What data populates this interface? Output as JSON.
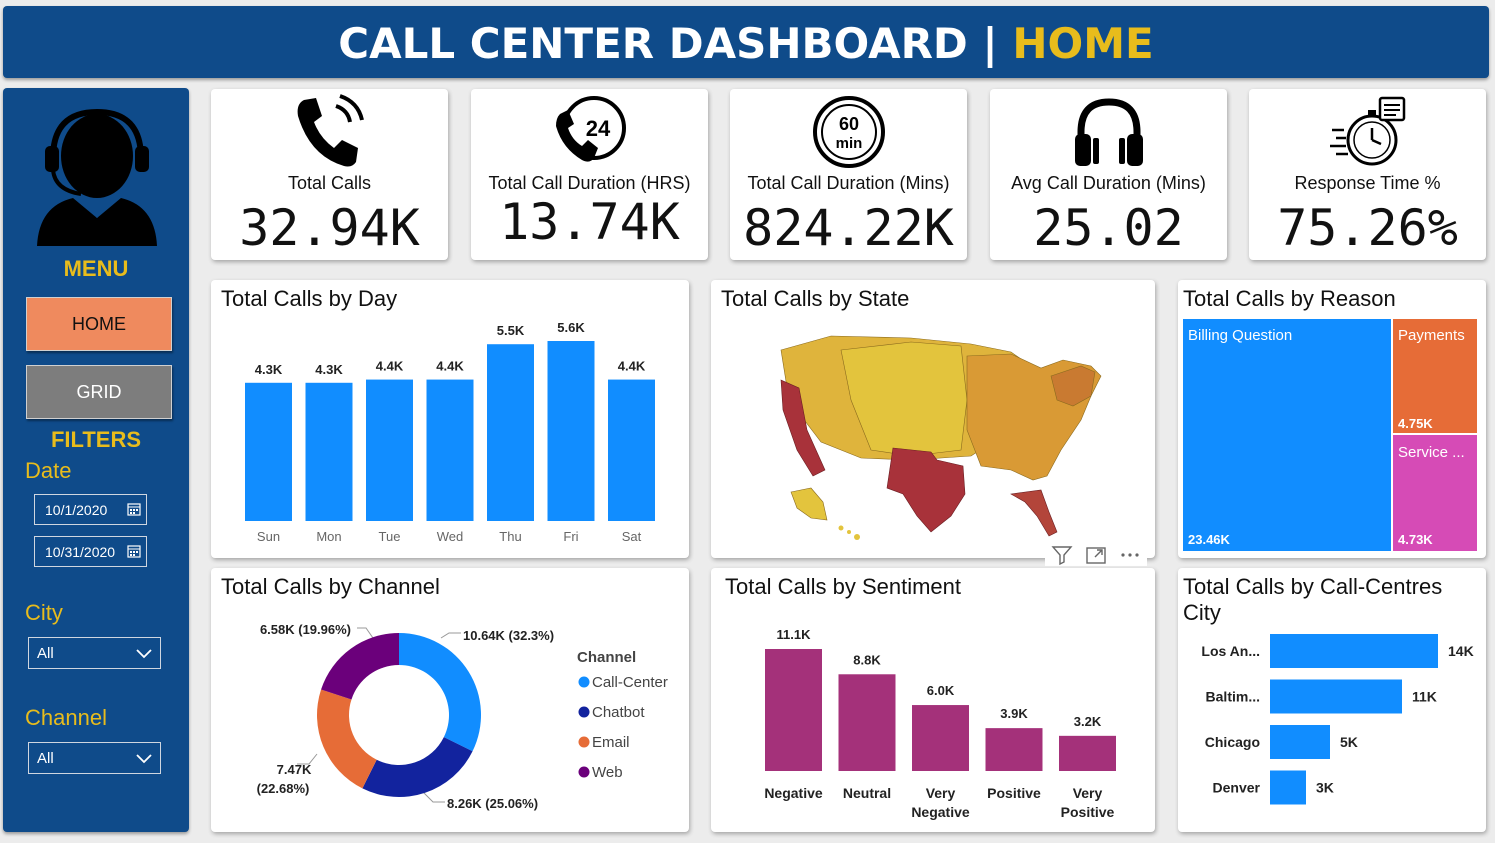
{
  "header": {
    "title_main": "CALL CENTER DASHBOARD | ",
    "title_page": "HOME"
  },
  "sidebar": {
    "menu_title": "MENU",
    "nav": {
      "home": "HOME",
      "grid": "GRID"
    },
    "filters_title": "FILTERS",
    "date_label": "Date",
    "date_from": "10/1/2020",
    "date_to": "10/31/2020",
    "city_label": "City",
    "city_value": "All",
    "channel_label": "Channel",
    "channel_value": "All"
  },
  "kpis": [
    {
      "label": "Total Calls",
      "value": "32.94K",
      "icon": "phone-icon"
    },
    {
      "label": "Total Call Duration (HRS)",
      "value": "13.74K",
      "icon": "24-hour-phone-icon"
    },
    {
      "label": "Total Call Duration (Mins)",
      "value": "824.22K",
      "icon": "60-min-timer-icon"
    },
    {
      "label": "Avg Call Duration (Mins)",
      "value": "25.02",
      "icon": "headphones-icon"
    },
    {
      "label": "Response Time %",
      "value": "75.26%",
      "icon": "stopwatch-icon"
    }
  ],
  "chart_data": [
    {
      "type": "bar",
      "title": "Total Calls by Day",
      "categories": [
        "Sun",
        "Mon",
        "Tue",
        "Wed",
        "Thu",
        "Fri",
        "Sat"
      ],
      "values": [
        4300,
        4300,
        4400,
        4400,
        5500,
        5600,
        4400
      ],
      "labels": [
        "4.3K",
        "4.3K",
        "4.4K",
        "4.4K",
        "5.5K",
        "5.6K",
        "4.4K"
      ],
      "color": "#118dff"
    },
    {
      "type": "map",
      "title": "Total Calls by State",
      "colors": {
        "low": "#e3c43d",
        "mid": "#d99a35",
        "high": "#a8323a"
      }
    },
    {
      "type": "treemap",
      "title": "Total Calls by Reason",
      "items": [
        {
          "name": "Billing Question",
          "value": "23.46K",
          "color": "#118dff"
        },
        {
          "name": "Payments",
          "value": "4.75K",
          "color": "#e66c37"
        },
        {
          "name": "Service ...",
          "value": "4.73K",
          "color": "#d64bb6"
        }
      ]
    },
    {
      "type": "pie",
      "title": "Total Calls by Channel",
      "legend_title": "Channel",
      "slices": [
        {
          "name": "Call-Center",
          "value": 10640,
          "label": "10.64K (32.3%)",
          "color": "#118dff"
        },
        {
          "name": "Chatbot",
          "value": 8260,
          "label": "8.26K (25.06%)",
          "color": "#12239e"
        },
        {
          "name": "Email",
          "value": 7470,
          "label_line1": "7.47K",
          "label_line2": "(22.68%)",
          "color": "#e66c37"
        },
        {
          "name": "Web",
          "value": 6580,
          "label": "6.58K (19.96%)",
          "color": "#6b007b"
        }
      ]
    },
    {
      "type": "bar",
      "title": "Total Calls by Sentiment",
      "categories": [
        "Negative",
        "Neutral",
        "Very Negative",
        "Positive",
        "Very Positive"
      ],
      "category_lines": [
        [
          "Negative"
        ],
        [
          "Neutral"
        ],
        [
          "Very",
          "Negative"
        ],
        [
          "Positive"
        ],
        [
          "Very",
          "Positive"
        ]
      ],
      "values": [
        11100,
        8800,
        6000,
        3900,
        3200
      ],
      "labels": [
        "11.1K",
        "8.8K",
        "6.0K",
        "3.9K",
        "3.2K"
      ],
      "color": "#a4317a"
    },
    {
      "type": "bar",
      "orientation": "horizontal",
      "title": "Total Calls by Call-Centres City",
      "categories": [
        "Los An...",
        "Baltim...",
        "Chicago",
        "Denver"
      ],
      "values": [
        14000,
        11000,
        5000,
        3000
      ],
      "labels": [
        "14K",
        "11K",
        "5K",
        "3K"
      ],
      "color": "#118dff"
    }
  ]
}
